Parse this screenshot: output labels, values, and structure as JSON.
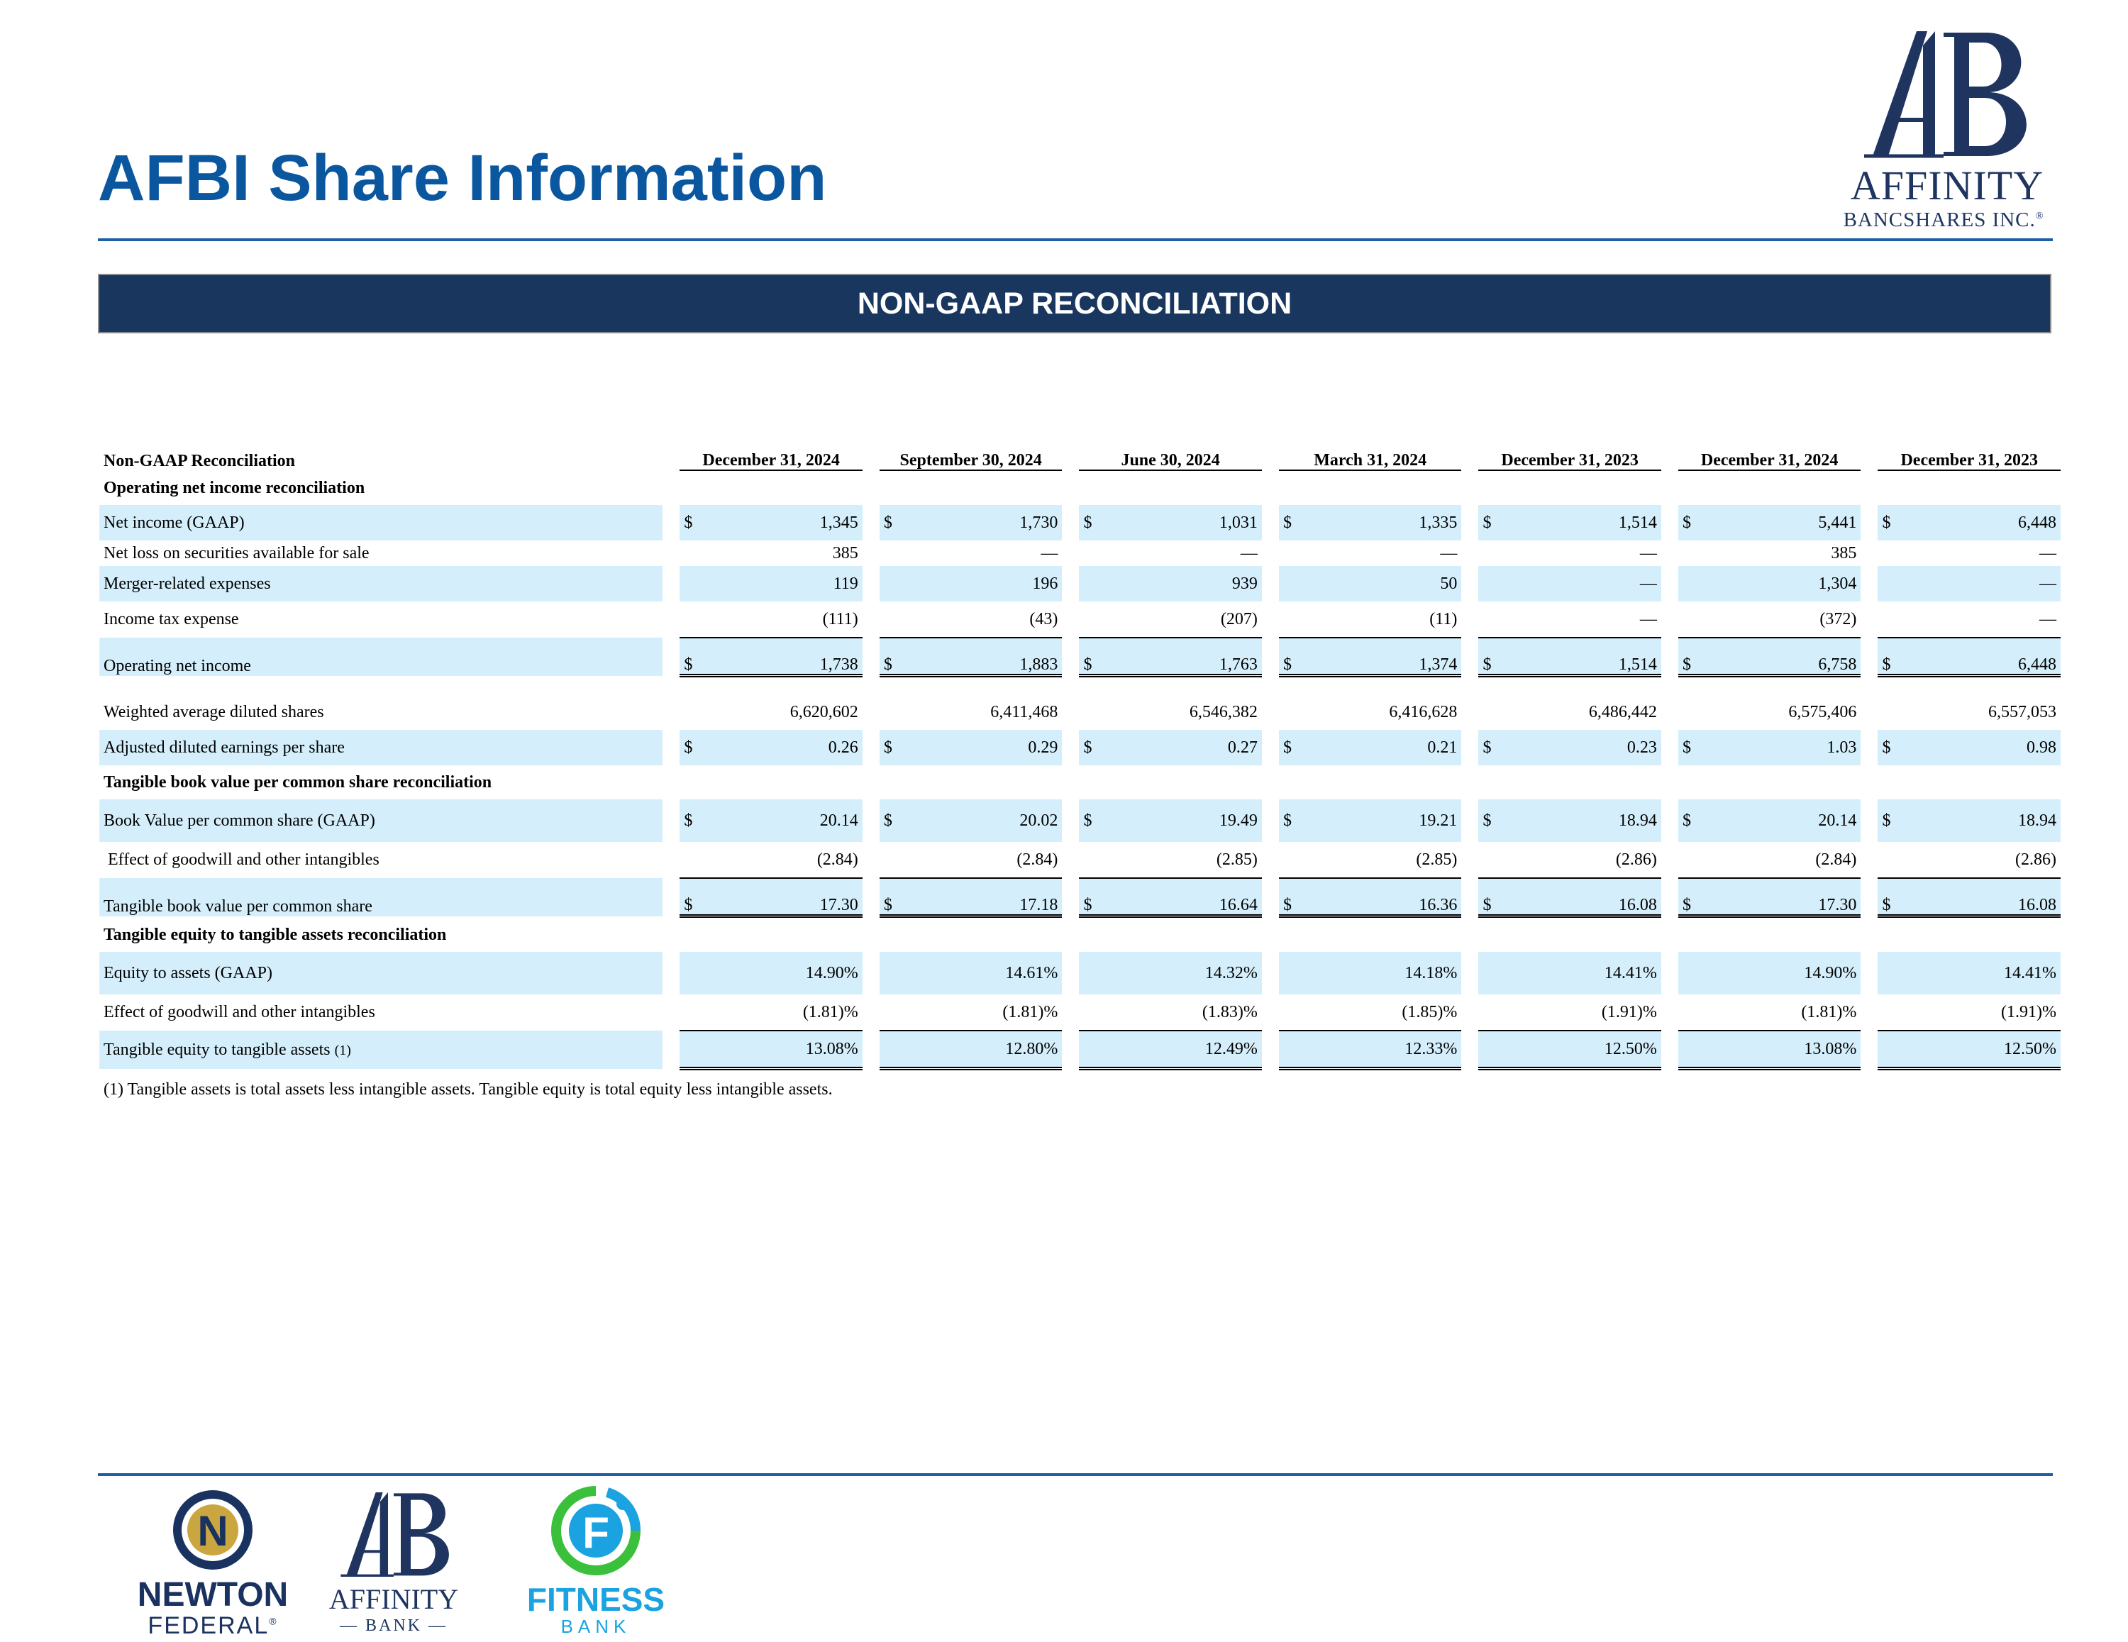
{
  "page": {
    "title": "AFBI Share Information",
    "banner": "NON-GAAP RECONCILIATION",
    "brand_color": "#0a57a0",
    "banner_color": "#19365e",
    "shade_color": "#d4effb"
  },
  "logos": {
    "affinity_top": {
      "name": "AFFINITY",
      "sub": "BANCSHARES INC.",
      "mark": "®"
    },
    "newton": {
      "name": "NEWTON",
      "sub": "FEDERAL",
      "mark": "®"
    },
    "affinity_bank": {
      "name": "AFFINITY",
      "sub": "— BANK —"
    },
    "fitness": {
      "name": "FITNESS",
      "sub": "BANK"
    }
  },
  "table": {
    "header_label": "Non-GAAP Reconciliation",
    "columns": [
      "December 31, 2024",
      "September 30, 2024",
      "June 30, 2024",
      "March 31, 2024",
      "December 31, 2023",
      "December 31, 2024",
      "December 31, 2023"
    ],
    "rows": [
      {
        "type": "section",
        "label": "Operating net income reconciliation"
      },
      {
        "type": "data",
        "label": "Net income (GAAP)",
        "dollar": true,
        "shade": true,
        "values": [
          "1,345",
          "1,730",
          "1,031",
          "1,335",
          "1,514",
          "5,441",
          "6,448"
        ]
      },
      {
        "type": "data",
        "label": "Net loss on securities available for sale",
        "tight": true,
        "values": [
          "385",
          "—",
          "—",
          "—",
          "—",
          "385",
          "—"
        ]
      },
      {
        "type": "data",
        "label": "Merger-related expenses",
        "shade": true,
        "values": [
          "119",
          "196",
          "939",
          "50",
          "—",
          "1,304",
          "—"
        ]
      },
      {
        "type": "data",
        "label": "Income tax expense",
        "underline": "single",
        "values": [
          "(111)",
          "(43)",
          "(207)",
          "(11)",
          "—",
          "(372)",
          "—"
        ]
      },
      {
        "type": "data",
        "label": "Operating net income",
        "dollar": true,
        "shade": true,
        "total": true,
        "underline": "double",
        "values": [
          "1,738",
          "1,883",
          "1,763",
          "1,374",
          "1,514",
          "6,758",
          "6,448"
        ]
      },
      {
        "type": "spacer"
      },
      {
        "type": "data",
        "label": "Weighted average diluted shares",
        "values": [
          "6,620,602",
          "6,411,468",
          "6,546,382",
          "6,416,628",
          "6,486,442",
          "6,575,406",
          "6,557,053"
        ]
      },
      {
        "type": "data",
        "label": "Adjusted diluted earnings per share",
        "dollar": true,
        "shade": true,
        "values": [
          "0.26",
          "0.29",
          "0.27",
          "0.21",
          "0.23",
          "1.03",
          "0.98"
        ]
      },
      {
        "type": "section",
        "label": "Tangible book value per common share reconciliation"
      },
      {
        "type": "data",
        "label": "Book Value per common share (GAAP)",
        "dollar": true,
        "shade": true,
        "gap": true,
        "values": [
          "20.14",
          "20.02",
          "19.49",
          "19.21",
          "18.94",
          "20.14",
          "18.94"
        ]
      },
      {
        "type": "data",
        "label": " Effect of goodwill and other intangibles",
        "underline": "single",
        "values": [
          "(2.84)",
          "(2.84)",
          "(2.85)",
          "(2.85)",
          "(2.86)",
          "(2.84)",
          "(2.86)"
        ]
      },
      {
        "type": "data",
        "label": "Tangible book value per common share",
        "dollar": true,
        "shade": true,
        "total": true,
        "underline": "double",
        "values": [
          "17.30",
          "17.18",
          "16.64",
          "16.36",
          "16.08",
          "17.30",
          "16.08"
        ]
      },
      {
        "type": "section",
        "label": "Tangible equity to tangible assets reconciliation"
      },
      {
        "type": "data",
        "label": "Equity to assets (GAAP)",
        "shade": true,
        "gap": true,
        "values": [
          "14.90%",
          "14.61%",
          "14.32%",
          "14.18%",
          "14.41%",
          "14.90%",
          "14.41%"
        ]
      },
      {
        "type": "data",
        "label": "Effect of goodwill and other intangibles",
        "underline": "single",
        "values": [
          "(1.81)%",
          "(1.81)%",
          "(1.83)%",
          "(1.85)%",
          "(1.91)%",
          "(1.81)%",
          "(1.91)%"
        ]
      },
      {
        "type": "data",
        "label": "Tangible equity to tangible assets",
        "note": "(1)",
        "shade": true,
        "underline": "double",
        "values": [
          "13.08%",
          "12.80%",
          "12.49%",
          "12.33%",
          "12.50%",
          "13.08%",
          "12.50%"
        ]
      }
    ],
    "footnote": "(1)  Tangible assets is total assets less intangible assets.  Tangible equity is total equity less intangible assets."
  }
}
